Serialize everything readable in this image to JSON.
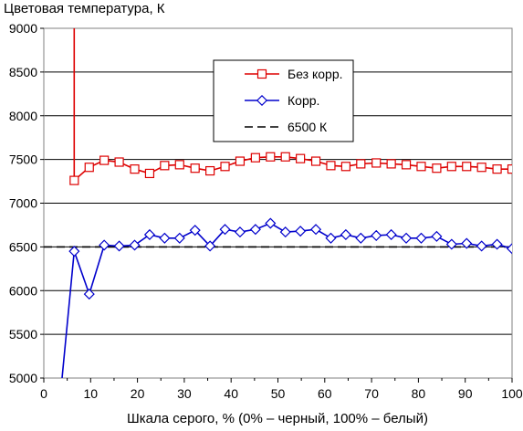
{
  "chart_data": {
    "type": "line",
    "title": "",
    "ylabel": "Цветовая температура, К",
    "xlabel": "Шкала серого, % (0% – черный, 100% – белый)",
    "xlim": [
      0,
      100
    ],
    "ylim": [
      5000,
      9000
    ],
    "x_ticks": [
      "0",
      "10",
      "20",
      "30",
      "40",
      "50",
      "60",
      "70",
      "80",
      "90",
      "100"
    ],
    "y_ticks": [
      "5000",
      "5500",
      "6000",
      "6500",
      "7000",
      "7500",
      "8000",
      "8500",
      "9000"
    ],
    "grid": "horizontal",
    "legend_placement": "top-center",
    "series": [
      {
        "name": "Без корр.",
        "color": "#dd0000",
        "marker": "square",
        "points": [
          [
            6.5,
            9000
          ],
          [
            6.5,
            7260
          ],
          [
            9.7,
            7410
          ],
          [
            12.9,
            7490
          ],
          [
            16.1,
            7470
          ],
          [
            19.4,
            7390
          ],
          [
            22.6,
            7340
          ],
          [
            25.8,
            7430
          ],
          [
            29.0,
            7440
          ],
          [
            32.3,
            7400
          ],
          [
            35.5,
            7370
          ],
          [
            38.7,
            7420
          ],
          [
            41.9,
            7480
          ],
          [
            45.2,
            7520
          ],
          [
            48.4,
            7530
          ],
          [
            51.6,
            7530
          ],
          [
            54.8,
            7510
          ],
          [
            58.1,
            7480
          ],
          [
            61.3,
            7430
          ],
          [
            64.5,
            7420
          ],
          [
            67.7,
            7450
          ],
          [
            71.0,
            7460
          ],
          [
            74.2,
            7450
          ],
          [
            77.4,
            7440
          ],
          [
            80.6,
            7420
          ],
          [
            83.9,
            7400
          ],
          [
            87.1,
            7420
          ],
          [
            90.3,
            7420
          ],
          [
            93.5,
            7410
          ],
          [
            96.8,
            7390
          ],
          [
            100,
            7390
          ]
        ]
      },
      {
        "name": "Корр.",
        "color": "#0000cc",
        "marker": "diamond",
        "points": [
          [
            3.9,
            5000
          ],
          [
            6.5,
            6450
          ],
          [
            9.7,
            5960
          ],
          [
            12.9,
            6520
          ],
          [
            16.1,
            6510
          ],
          [
            19.4,
            6520
          ],
          [
            22.6,
            6640
          ],
          [
            25.8,
            6600
          ],
          [
            29.0,
            6600
          ],
          [
            32.3,
            6690
          ],
          [
            35.5,
            6510
          ],
          [
            38.7,
            6700
          ],
          [
            41.9,
            6670
          ],
          [
            45.2,
            6700
          ],
          [
            48.4,
            6770
          ],
          [
            51.6,
            6670
          ],
          [
            54.8,
            6680
          ],
          [
            58.1,
            6700
          ],
          [
            61.3,
            6600
          ],
          [
            64.5,
            6640
          ],
          [
            67.7,
            6600
          ],
          [
            71.0,
            6630
          ],
          [
            74.2,
            6640
          ],
          [
            77.4,
            6600
          ],
          [
            80.6,
            6600
          ],
          [
            83.9,
            6620
          ],
          [
            87.1,
            6530
          ],
          [
            90.3,
            6540
          ],
          [
            93.5,
            6510
          ],
          [
            96.8,
            6530
          ],
          [
            100,
            6480
          ]
        ]
      },
      {
        "name": "6500 К",
        "color": "#000000",
        "style": "dashed",
        "points": [
          [
            0,
            6500
          ],
          [
            100,
            6500
          ]
        ]
      }
    ]
  }
}
